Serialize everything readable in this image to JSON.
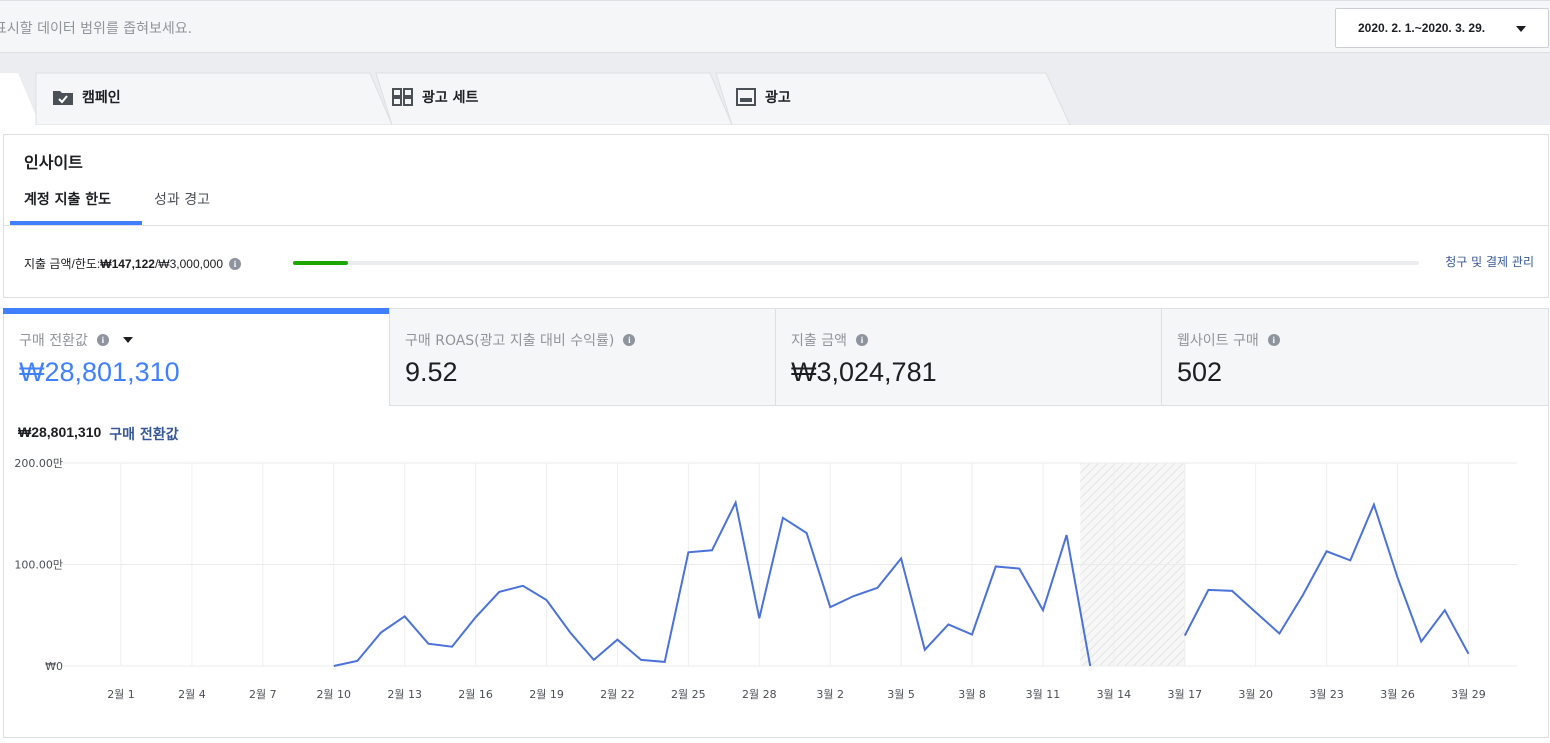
{
  "filter": {
    "hint": "표시할 데이터 범위를 좁혀보세요.",
    "date_range": "2020. 2. 1.~2020. 3. 29."
  },
  "tabs": [
    {
      "label": "캠페인",
      "icon": "folder-check-icon"
    },
    {
      "label": "광고 세트",
      "icon": "grid-icon"
    },
    {
      "label": "광고",
      "icon": "ad-icon"
    }
  ],
  "insights": {
    "title": "인사이트",
    "sub_tabs": [
      "계정 지출 한도",
      "성과 경고"
    ],
    "spend_label": "지출 금액/한도: ",
    "spend_amount": "₩147,122",
    "spend_limit": "/₩3,000,000",
    "spend_progress": 0.049,
    "billing_link": "청구 및 결제 관리"
  },
  "metrics": [
    {
      "label": "구매 전환값",
      "value": "₩28,801,310",
      "active": true
    },
    {
      "label": "구매 ROAS(광고 지출 대비 수익률)",
      "value": "9.52",
      "active": false
    },
    {
      "label": "지출 금액",
      "value": "₩3,024,781",
      "active": false
    },
    {
      "label": "웹사이트 구매",
      "value": "502",
      "active": false
    }
  ],
  "colors": {
    "accent": "#4080ff",
    "link": "#365899",
    "progress": "#1fa500",
    "line": "#4a72d9"
  },
  "chart_data": {
    "type": "line",
    "summary_value": "₩28,801,310",
    "summary_name": "구매 전환값",
    "y_ticks": [
      {
        "value": 0,
        "label": "₩0"
      },
      {
        "value": 100,
        "label": "100.00만"
      },
      {
        "value": 200,
        "label": "200.00만"
      }
    ],
    "ylim": [
      0,
      200
    ],
    "x_ticks": [
      "2월 1",
      "2월 4",
      "2월 7",
      "2월 10",
      "2월 13",
      "2월 16",
      "2월 19",
      "2월 22",
      "2월 25",
      "2월 28",
      "3월 2",
      "3월 5",
      "3월 8",
      "3월 11",
      "3월 14",
      "3월 17",
      "3월 20",
      "3월 23",
      "3월 26",
      "3월 29"
    ],
    "x_tick_days": [
      1,
      4,
      7,
      10,
      13,
      16,
      19,
      22,
      25,
      28,
      31,
      34,
      37,
      40,
      43,
      46,
      49,
      52,
      55,
      58
    ],
    "shaded_range_days": [
      42,
      46
    ],
    "segments": [
      [
        [
          10,
          0
        ],
        [
          11,
          5
        ],
        [
          12,
          33
        ],
        [
          13,
          49
        ],
        [
          14,
          22
        ],
        [
          15,
          19
        ],
        [
          16,
          48
        ],
        [
          17,
          73
        ],
        [
          18,
          79
        ],
        [
          19,
          65
        ],
        [
          20,
          33
        ],
        [
          21,
          6
        ],
        [
          22,
          26
        ],
        [
          23,
          6
        ],
        [
          24,
          4
        ],
        [
          25,
          112
        ],
        [
          26,
          114
        ],
        [
          27,
          161
        ],
        [
          28,
          47
        ],
        [
          29,
          146
        ],
        [
          30,
          131
        ],
        [
          31,
          58
        ],
        [
          32,
          69
        ],
        [
          33,
          77
        ],
        [
          34,
          106
        ],
        [
          35,
          16
        ],
        [
          36,
          41
        ],
        [
          37,
          31
        ],
        [
          38,
          98
        ],
        [
          39,
          96
        ],
        [
          40,
          55
        ],
        [
          41,
          129
        ],
        [
          42,
          0
        ]
      ],
      [
        [
          46,
          30
        ],
        [
          47,
          75
        ],
        [
          48,
          74
        ],
        [
          49,
          53
        ],
        [
          50,
          32
        ],
        [
          51,
          70
        ],
        [
          52,
          113
        ],
        [
          53,
          104
        ],
        [
          54,
          159
        ],
        [
          55,
          87
        ],
        [
          56,
          24
        ],
        [
          57,
          55
        ],
        [
          58,
          12
        ]
      ]
    ]
  }
}
